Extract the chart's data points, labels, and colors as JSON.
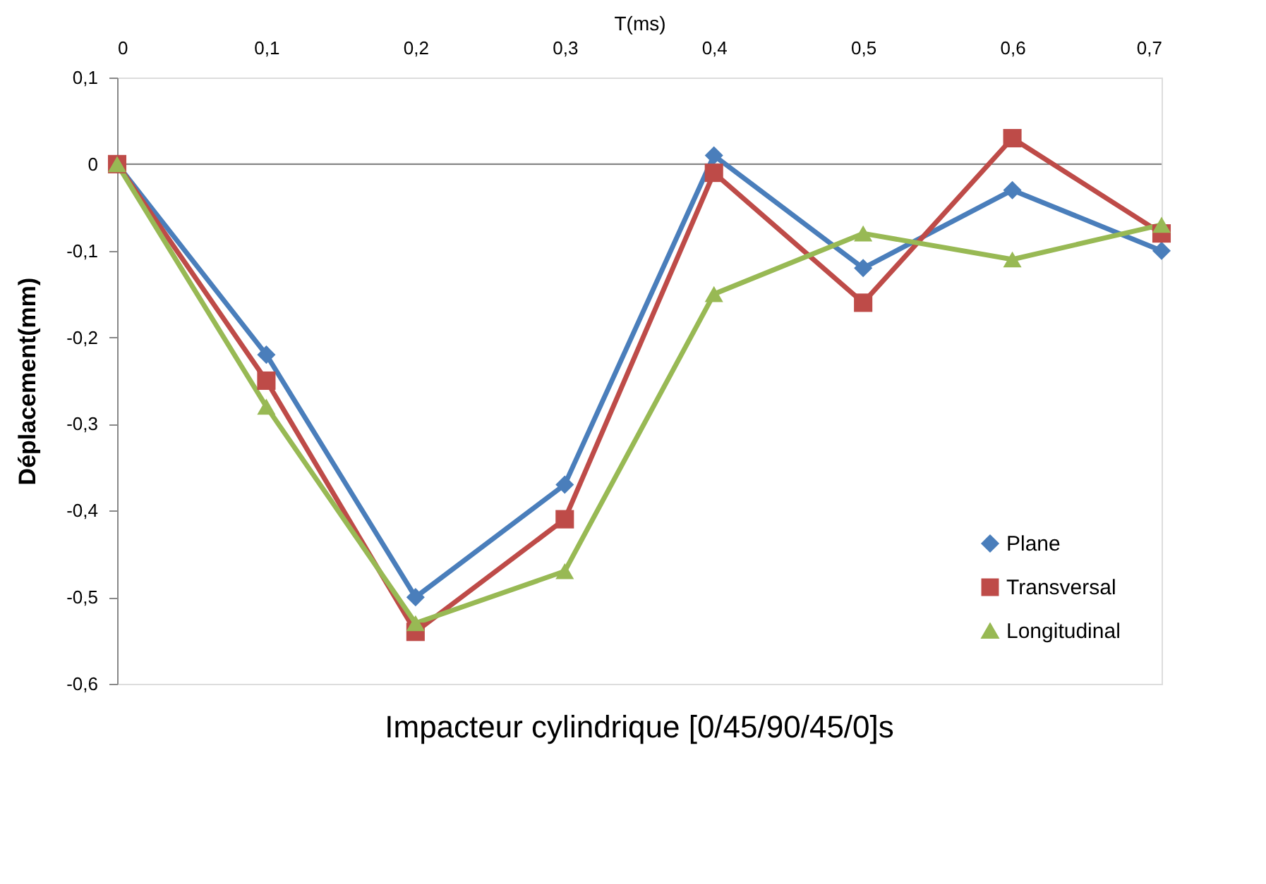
{
  "chart_data": {
    "type": "line",
    "title": "Impacteur cylindrique [0/45/90/45/0]s",
    "xlabel": "T(ms)",
    "ylabel": "Déplacement(mm)",
    "x": [
      0,
      0.1,
      0.2,
      0.3,
      0.4,
      0.5,
      0.6,
      0.7
    ],
    "series": [
      {
        "name": "Plane",
        "color": "#4a7ebb",
        "marker": "diamond",
        "values": [
          0,
          -0.22,
          -0.5,
          -0.37,
          0.01,
          -0.12,
          -0.03,
          -0.1
        ]
      },
      {
        "name": "Transversal",
        "color": "#be4b48",
        "marker": "square",
        "values": [
          0,
          -0.25,
          -0.54,
          -0.41,
          -0.01,
          -0.16,
          0.03,
          -0.08
        ]
      },
      {
        "name": "Longitudinal",
        "color": "#98b954",
        "marker": "triangle",
        "values": [
          0,
          -0.28,
          -0.53,
          -0.47,
          -0.15,
          -0.08,
          -0.11,
          -0.07
        ]
      }
    ],
    "xlim": [
      0,
      0.7
    ],
    "xticks": [
      {
        "value": 0,
        "label": "0"
      },
      {
        "value": 0.1,
        "label": "0,1"
      },
      {
        "value": 0.2,
        "label": "0,2"
      },
      {
        "value": 0.3,
        "label": "0,3"
      },
      {
        "value": 0.4,
        "label": "0,4"
      },
      {
        "value": 0.5,
        "label": "0,5"
      },
      {
        "value": 0.6,
        "label": "0,6"
      },
      {
        "value": 0.7,
        "label": "0,7"
      }
    ],
    "ylim": [
      -0.6,
      0.1
    ],
    "yticks": [
      {
        "value": 0.1,
        "label": "0,1"
      },
      {
        "value": 0,
        "label": "0"
      },
      {
        "value": -0.1,
        "label": "-0,1"
      },
      {
        "value": -0.2,
        "label": "-0,2"
      },
      {
        "value": -0.3,
        "label": "-0,3"
      },
      {
        "value": -0.4,
        "label": "-0,4"
      },
      {
        "value": -0.5,
        "label": "-0,5"
      },
      {
        "value": -0.6,
        "label": "-0,6"
      }
    ],
    "ref_lines": [
      {
        "axis": "y",
        "value": 0,
        "color": "#888888"
      }
    ],
    "grid": false,
    "legend": "bottom right",
    "line_style": "solid"
  }
}
